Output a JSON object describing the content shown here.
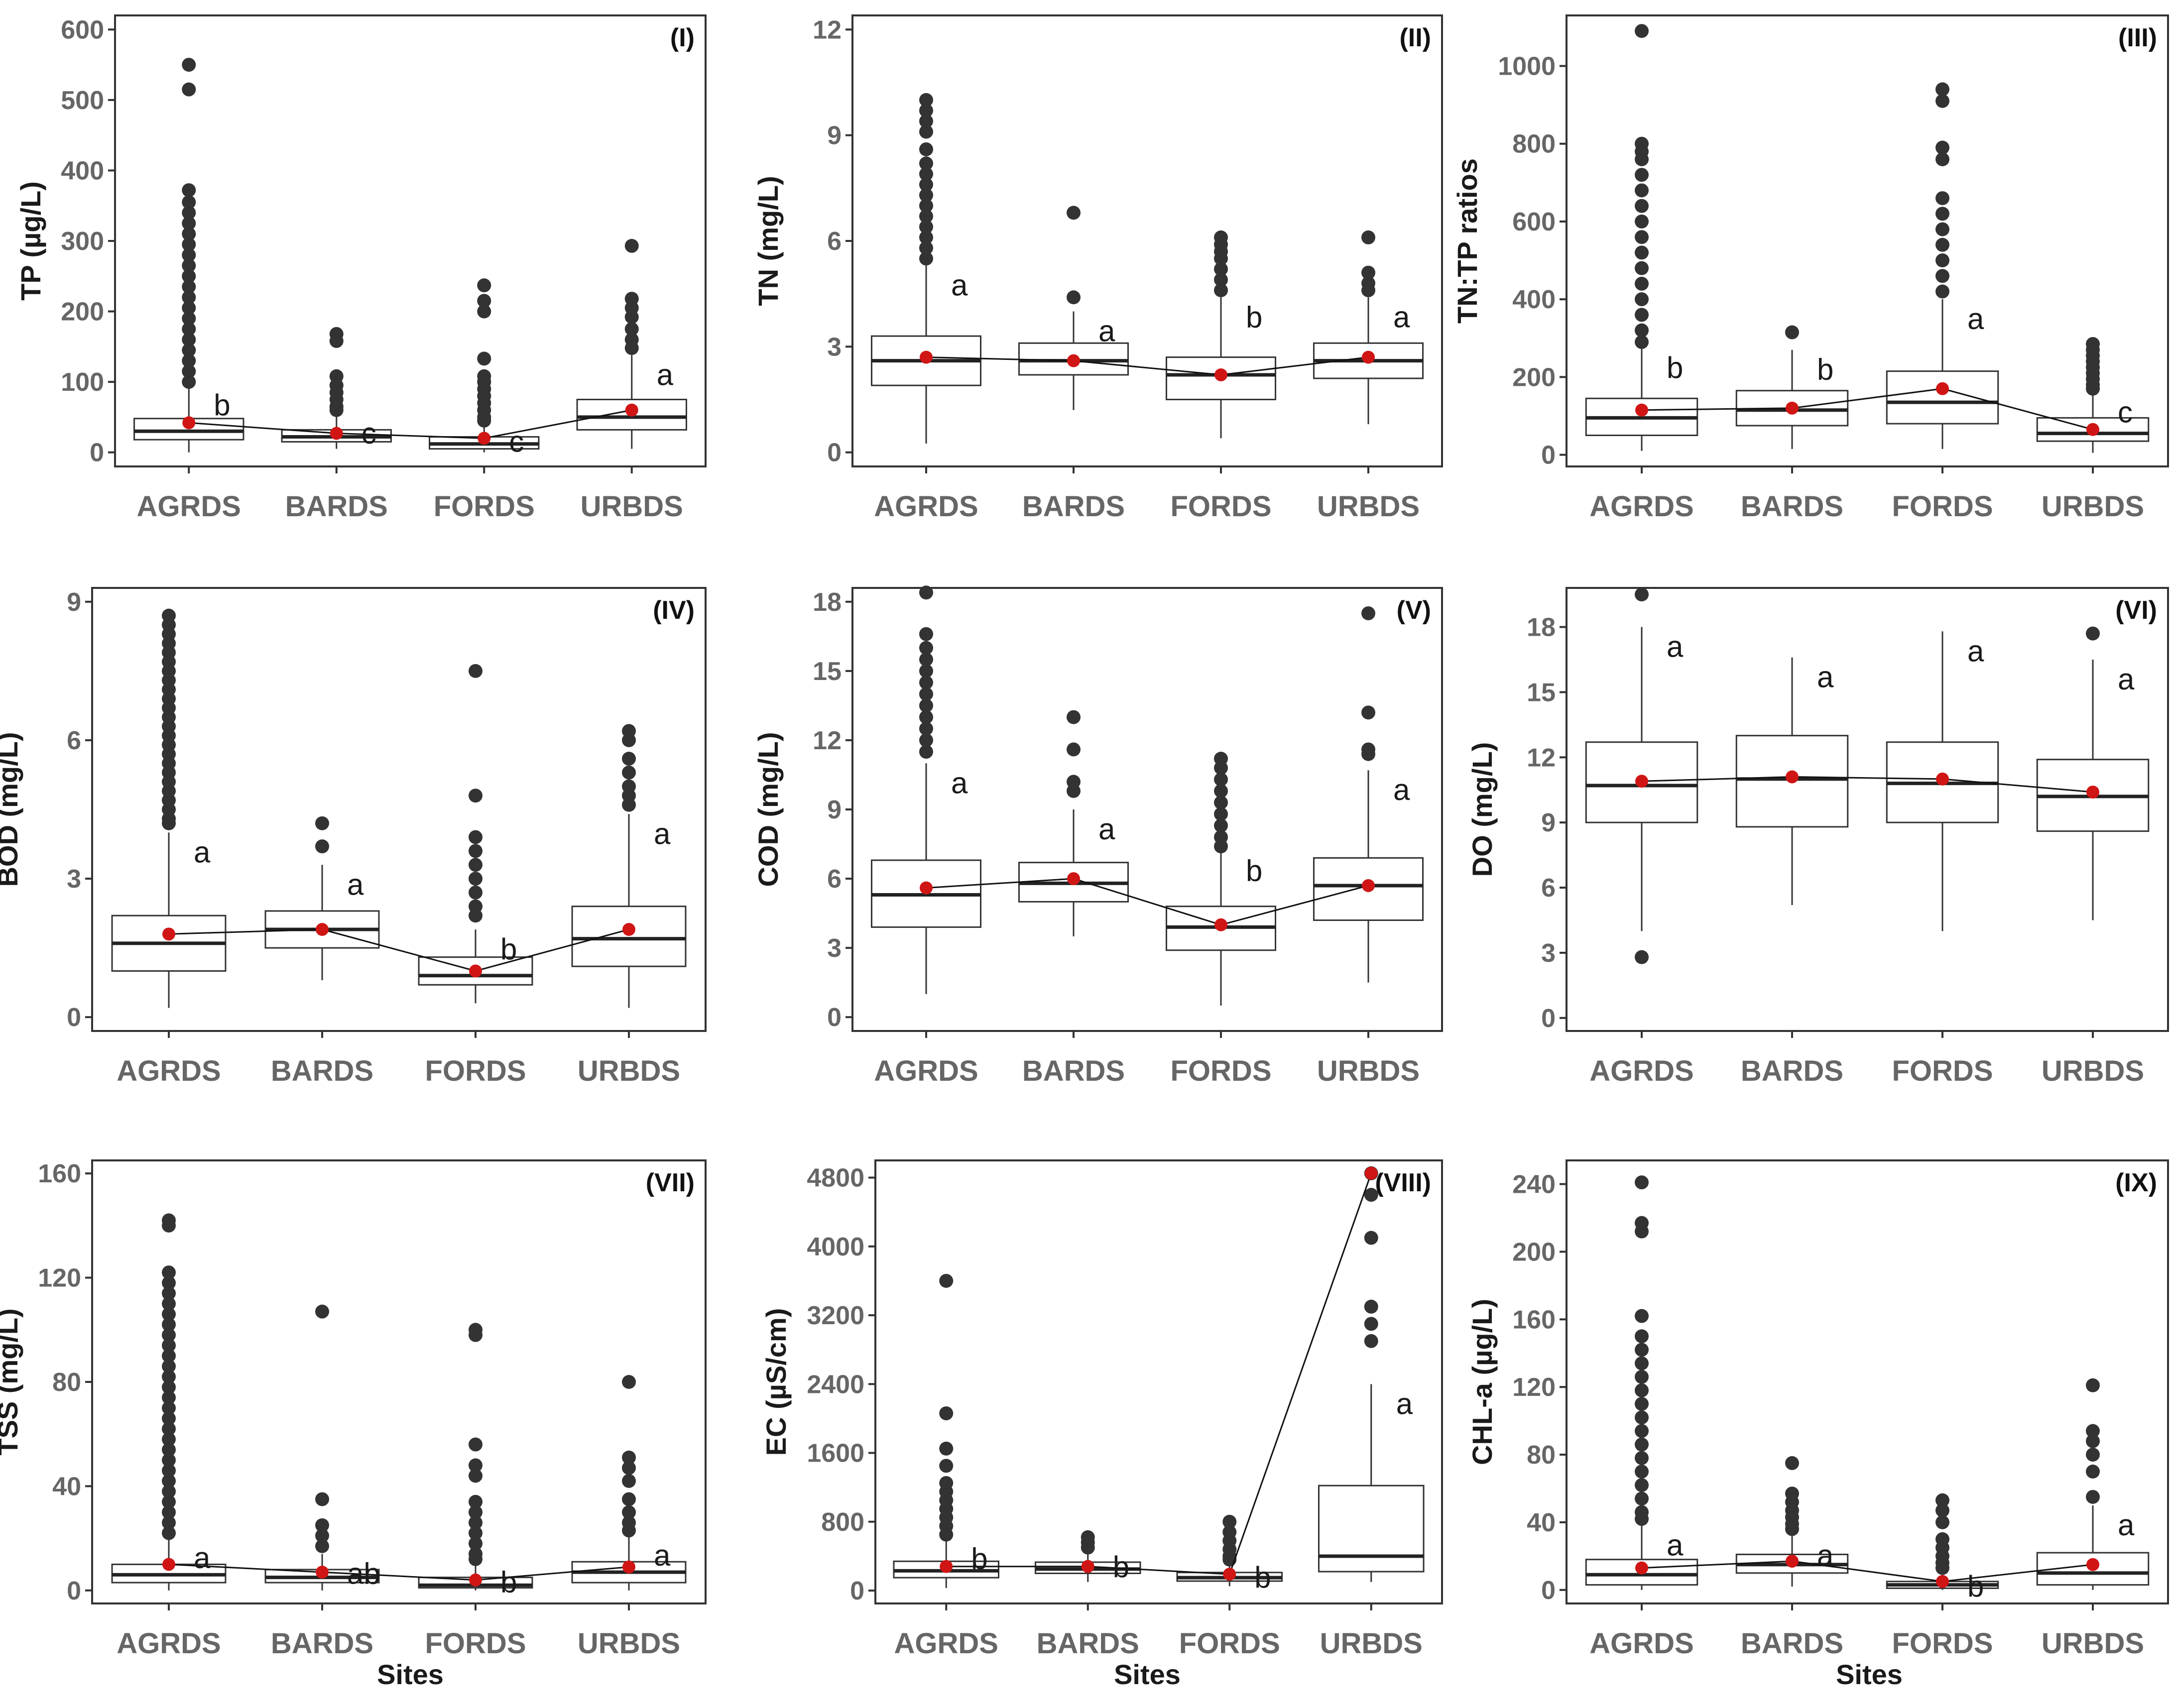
{
  "x_label": "Sites",
  "chart_data": [
    {
      "type": "box",
      "panel": "(I)",
      "ylabel": "TP (µg/L)",
      "ylim": [
        -20,
        620
      ],
      "yticks": [
        0,
        100,
        200,
        300,
        400,
        500,
        600
      ],
      "categories": [
        "AGRDS",
        "BARDS",
        "FORDS",
        "URBDS"
      ],
      "boxes": [
        {
          "min": 0,
          "q1": 18,
          "median": 30,
          "q3": 48,
          "max": 95,
          "mean": 42,
          "letter": "b",
          "outliers": [
            550,
            515,
            372,
            355,
            340,
            325,
            310,
            295,
            280,
            265,
            250,
            235,
            220,
            205,
            190,
            175,
            160,
            145,
            130,
            115,
            100
          ]
        },
        {
          "min": 5,
          "q1": 15,
          "median": 22,
          "q3": 32,
          "max": 55,
          "mean": 27,
          "letter": "c",
          "outliers": [
            168,
            158,
            108,
            95,
            85,
            75,
            65,
            60
          ]
        },
        {
          "min": 0,
          "q1": 5,
          "median": 12,
          "q3": 22,
          "max": 40,
          "mean": 20,
          "letter": "c",
          "outliers": [
            237,
            215,
            200,
            133,
            108,
            100,
            90,
            80,
            70,
            60,
            50,
            45
          ]
        },
        {
          "min": 5,
          "q1": 32,
          "median": 50,
          "q3": 75,
          "max": 138,
          "mean": 60,
          "letter": "a",
          "outliers": [
            293,
            218,
            205,
            192,
            175,
            160,
            148
          ]
        }
      ]
    },
    {
      "type": "box",
      "panel": "(II)",
      "ylabel": "TN (mg/L)",
      "ylim": [
        -0.4,
        12.4
      ],
      "yticks": [
        0,
        3,
        6,
        9,
        12
      ],
      "categories": [
        "AGRDS",
        "BARDS",
        "FORDS",
        "URBDS"
      ],
      "boxes": [
        {
          "min": 0.25,
          "q1": 1.9,
          "median": 2.6,
          "q3": 3.3,
          "max": 5.3,
          "mean": 2.7,
          "letter": "a",
          "outliers": [
            10.0,
            9.7,
            9.4,
            9.1,
            8.6,
            8.2,
            7.9,
            7.6,
            7.3,
            7.0,
            6.7,
            6.4,
            6.1,
            5.8,
            5.5
          ]
        },
        {
          "min": 1.2,
          "q1": 2.2,
          "median": 2.6,
          "q3": 3.1,
          "max": 4.0,
          "mean": 2.6,
          "letter": "a",
          "outliers": [
            6.8,
            4.4
          ]
        },
        {
          "min": 0.4,
          "q1": 1.5,
          "median": 2.2,
          "q3": 2.7,
          "max": 4.4,
          "mean": 2.2,
          "letter": "b",
          "outliers": [
            6.1,
            5.9,
            5.7,
            5.5,
            5.2,
            4.9,
            4.6
          ]
        },
        {
          "min": 0.8,
          "q1": 2.1,
          "median": 2.6,
          "q3": 3.1,
          "max": 4.4,
          "mean": 2.7,
          "letter": "a",
          "outliers": [
            6.1,
            5.1,
            4.8,
            4.6
          ]
        }
      ]
    },
    {
      "type": "box",
      "panel": "(III)",
      "ylabel": "TN:TP ratios",
      "ylim": [
        -30,
        1130
      ],
      "yticks": [
        0,
        200,
        400,
        600,
        800,
        1000
      ],
      "categories": [
        "AGRDS",
        "BARDS",
        "FORDS",
        "URBDS"
      ],
      "boxes": [
        {
          "min": 10,
          "q1": 50,
          "median": 95,
          "q3": 145,
          "max": 275,
          "mean": 115,
          "letter": "b",
          "outliers": [
            1090,
            800,
            780,
            760,
            720,
            680,
            640,
            600,
            560,
            520,
            480,
            440,
            400,
            360,
            320,
            290
          ]
        },
        {
          "min": 15,
          "q1": 75,
          "median": 115,
          "q3": 165,
          "max": 270,
          "mean": 120,
          "letter": "b",
          "outliers": [
            315
          ]
        },
        {
          "min": 15,
          "q1": 80,
          "median": 135,
          "q3": 215,
          "max": 400,
          "mean": 170,
          "letter": "a",
          "outliers": [
            940,
            910,
            790,
            760,
            660,
            620,
            580,
            540,
            500,
            460,
            420
          ]
        },
        {
          "min": 5,
          "q1": 35,
          "median": 55,
          "q3": 95,
          "max": 160,
          "mean": 65,
          "letter": "c",
          "outliers": [
            285,
            270,
            255,
            240,
            225,
            210,
            195,
            180,
            170
          ]
        }
      ]
    },
    {
      "type": "box",
      "panel": "(IV)",
      "ylabel": "BOD (mg/L)",
      "ylim": [
        -0.3,
        9.3
      ],
      "yticks": [
        0,
        3,
        6,
        9
      ],
      "categories": [
        "AGRDS",
        "BARDS",
        "FORDS",
        "URBDS"
      ],
      "boxes": [
        {
          "min": 0.2,
          "q1": 1.0,
          "median": 1.6,
          "q3": 2.2,
          "max": 4.0,
          "mean": 1.8,
          "letter": "a",
          "outliers": [
            8.7,
            8.5,
            8.3,
            8.1,
            7.9,
            7.7,
            7.5,
            7.3,
            7.1,
            6.9,
            6.7,
            6.5,
            6.3,
            6.1,
            5.9,
            5.7,
            5.5,
            5.3,
            5.1,
            4.9,
            4.7,
            4.5,
            4.3,
            4.2
          ]
        },
        {
          "min": 0.8,
          "q1": 1.5,
          "median": 1.9,
          "q3": 2.3,
          "max": 3.3,
          "mean": 1.9,
          "letter": "a",
          "outliers": [
            4.2,
            3.7
          ]
        },
        {
          "min": 0.3,
          "q1": 0.7,
          "median": 0.9,
          "q3": 1.3,
          "max": 1.9,
          "mean": 1.0,
          "letter": "b",
          "outliers": [
            7.5,
            4.8,
            3.9,
            3.6,
            3.3,
            3.0,
            2.7,
            2.4,
            2.2
          ]
        },
        {
          "min": 0.2,
          "q1": 1.1,
          "median": 1.7,
          "q3": 2.4,
          "max": 4.4,
          "mean": 1.9,
          "letter": "a",
          "outliers": [
            6.2,
            6.0,
            5.6,
            5.3,
            5.0,
            4.8,
            4.6
          ]
        }
      ]
    },
    {
      "type": "box",
      "panel": "(V)",
      "ylabel": "COD (mg/L)",
      "ylim": [
        -0.6,
        18.6
      ],
      "yticks": [
        0,
        3,
        6,
        9,
        12,
        15,
        18
      ],
      "categories": [
        "AGRDS",
        "BARDS",
        "FORDS",
        "URBDS"
      ],
      "boxes": [
        {
          "min": 1.0,
          "q1": 3.9,
          "median": 5.3,
          "q3": 6.8,
          "max": 11.0,
          "mean": 5.6,
          "letter": "a",
          "outliers": [
            18.4,
            16.6,
            16.0,
            15.5,
            15.0,
            14.5,
            14.0,
            13.5,
            13.0,
            12.5,
            12.0,
            11.5
          ]
        },
        {
          "min": 3.5,
          "q1": 5.0,
          "median": 5.8,
          "q3": 6.7,
          "max": 9.0,
          "mean": 6.0,
          "letter": "a",
          "outliers": [
            13.0,
            11.6,
            10.2,
            9.8
          ]
        },
        {
          "min": 0.5,
          "q1": 2.9,
          "median": 3.9,
          "q3": 4.8,
          "max": 7.2,
          "mean": 4.0,
          "letter": "b",
          "outliers": [
            11.2,
            10.8,
            10.3,
            9.8,
            9.3,
            8.8,
            8.3,
            7.8,
            7.4
          ]
        },
        {
          "min": 1.5,
          "q1": 4.2,
          "median": 5.7,
          "q3": 6.9,
          "max": 10.7,
          "mean": 5.7,
          "letter": "a",
          "outliers": [
            17.5,
            13.2,
            11.6,
            11.4
          ]
        }
      ]
    },
    {
      "type": "box",
      "panel": "(VI)",
      "ylabel": "DO (mg/L)",
      "ylim": [
        -0.6,
        19.8
      ],
      "yticks": [
        0,
        3,
        6,
        9,
        12,
        15,
        18
      ],
      "categories": [
        "AGRDS",
        "BARDS",
        "FORDS",
        "URBDS"
      ],
      "boxes": [
        {
          "min": 4.0,
          "q1": 9.0,
          "median": 10.7,
          "q3": 12.7,
          "max": 18.0,
          "mean": 10.9,
          "letter": "a",
          "outliers": [
            19.5,
            2.8
          ]
        },
        {
          "min": 5.2,
          "q1": 8.8,
          "median": 11.0,
          "q3": 13.0,
          "max": 16.6,
          "mean": 11.1,
          "letter": "a",
          "outliers": []
        },
        {
          "min": 4.0,
          "q1": 9.0,
          "median": 10.8,
          "q3": 12.7,
          "max": 17.8,
          "mean": 11.0,
          "letter": "a",
          "outliers": []
        },
        {
          "min": 4.5,
          "q1": 8.6,
          "median": 10.2,
          "q3": 11.9,
          "max": 16.5,
          "mean": 10.4,
          "letter": "a",
          "outliers": [
            17.7
          ]
        }
      ]
    },
    {
      "type": "box",
      "panel": "(VII)",
      "ylabel": "TSS (mg/L)",
      "ylim": [
        -5,
        165
      ],
      "yticks": [
        0,
        40,
        80,
        120,
        160
      ],
      "categories": [
        "AGRDS",
        "BARDS",
        "FORDS",
        "URBDS"
      ],
      "boxes": [
        {
          "min": 0,
          "q1": 3,
          "median": 6,
          "q3": 10,
          "max": 20,
          "mean": 10,
          "letter": "a",
          "outliers": [
            142,
            140,
            122,
            118,
            114,
            110,
            106,
            102,
            98,
            94,
            90,
            86,
            82,
            78,
            74,
            70,
            66,
            62,
            58,
            54,
            50,
            46,
            42,
            38,
            34,
            30,
            26,
            22
          ]
        },
        {
          "min": 0,
          "q1": 3,
          "median": 5,
          "q3": 8,
          "max": 14,
          "mean": 7,
          "letter": "ab",
          "outliers": [
            107,
            35,
            25,
            21,
            17
          ]
        },
        {
          "min": 0,
          "q1": 1,
          "median": 2,
          "q3": 5,
          "max": 10,
          "mean": 4,
          "letter": "b",
          "outliers": [
            100,
            98,
            56,
            48,
            44,
            34,
            30,
            26,
            22,
            18,
            14,
            12
          ]
        },
        {
          "min": 0,
          "q1": 3,
          "median": 7,
          "q3": 11,
          "max": 21,
          "mean": 9,
          "letter": "a",
          "outliers": [
            80,
            51,
            47,
            42,
            35,
            30,
            26,
            23
          ]
        }
      ]
    },
    {
      "type": "box",
      "panel": "(VIII)",
      "ylabel": "EC (µS/cm)",
      "ylim": [
        -150,
        5000
      ],
      "yticks": [
        0,
        800,
        1600,
        2400,
        3200,
        4000,
        4800
      ],
      "categories": [
        "AGRDS",
        "BARDS",
        "FORDS",
        "URBDS"
      ],
      "boxes": [
        {
          "min": 30,
          "q1": 150,
          "median": 230,
          "q3": 340,
          "max": 600,
          "mean": 280,
          "letter": "b",
          "outliers": [
            3600,
            2060,
            1650,
            1450,
            1250,
            1150,
            1050,
            950,
            850,
            750,
            650
          ]
        },
        {
          "min": 100,
          "q1": 200,
          "median": 250,
          "q3": 330,
          "max": 450,
          "mean": 280,
          "letter": "b",
          "outliers": [
            620,
            560,
            500
          ]
        },
        {
          "min": 50,
          "q1": 110,
          "median": 150,
          "q3": 210,
          "max": 330,
          "mean": 190,
          "letter": "b",
          "outliers": [
            800,
            680,
            580,
            480,
            400,
            360
          ]
        },
        {
          "min": 100,
          "q1": 220,
          "median": 400,
          "q3": 1220,
          "max": 2400,
          "mean": 4850,
          "letter": "a",
          "outliers": [
            4850,
            4600,
            4100,
            3300,
            3100,
            2900
          ]
        }
      ]
    },
    {
      "type": "box",
      "panel": "(IX)",
      "ylabel": "CHL-a (µg/L)",
      "ylim": [
        -8,
        254
      ],
      "yticks": [
        0,
        40,
        80,
        120,
        160,
        200,
        240
      ],
      "categories": [
        "AGRDS",
        "BARDS",
        "FORDS",
        "URBDS"
      ],
      "boxes": [
        {
          "min": 0,
          "q1": 3,
          "median": 9,
          "q3": 18,
          "max": 38,
          "mean": 13,
          "letter": "a",
          "outliers": [
            241,
            217,
            212,
            162,
            150,
            142,
            134,
            126,
            118,
            110,
            102,
            94,
            86,
            78,
            70,
            62,
            54,
            46,
            42
          ]
        },
        {
          "min": 2,
          "q1": 10,
          "median": 15,
          "q3": 21,
          "max": 32,
          "mean": 17,
          "letter": "a",
          "outliers": [
            75,
            57,
            52,
            47,
            43,
            39,
            36
          ]
        },
        {
          "min": 0,
          "q1": 1,
          "median": 3,
          "q3": 5,
          "max": 10,
          "mean": 5,
          "letter": "b",
          "outliers": [
            53,
            47,
            40,
            30,
            25,
            20,
            16,
            13
          ]
        },
        {
          "min": 0,
          "q1": 3,
          "median": 10,
          "q3": 22,
          "max": 50,
          "mean": 15,
          "letter": "a",
          "outliers": [
            121,
            94,
            88,
            80,
            70,
            55
          ]
        }
      ]
    }
  ]
}
